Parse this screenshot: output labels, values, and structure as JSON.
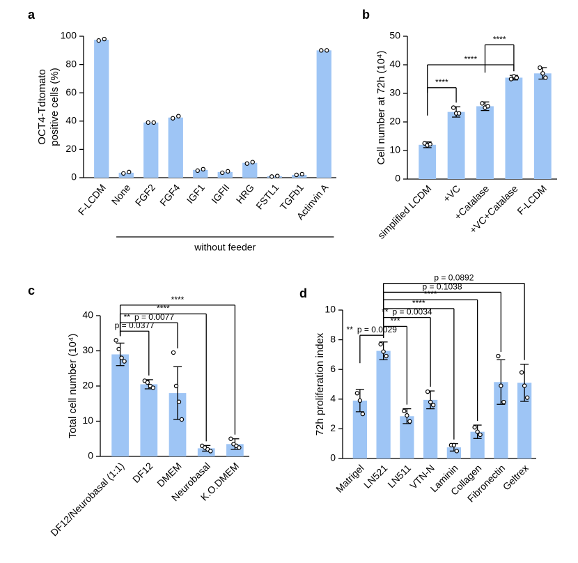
{
  "chart_data": [
    {
      "type": "bar",
      "panel": "a",
      "ylabel": [
        "OCT4-Tdtomato",
        "positive cells (%)"
      ],
      "categories": [
        "F-LCDM",
        "None",
        "FGF2",
        "FGF4",
        "IGF1",
        "IGFII",
        "HRG",
        "FSTL1",
        "TGFb1",
        "Actinvin A"
      ],
      "values": [
        97.5,
        3.5,
        39,
        42.5,
        5.5,
        4,
        10.5,
        1,
        2,
        90
      ],
      "points": [
        [
          97,
          98
        ],
        [
          3,
          4
        ],
        [
          39,
          39
        ],
        [
          42,
          43.5
        ],
        [
          5,
          6
        ],
        [
          3.5,
          4.5
        ],
        [
          10,
          11
        ],
        [
          0.8,
          1.2
        ],
        [
          2,
          2.5
        ],
        [
          90,
          90
        ]
      ],
      "color": "#9ec5f5",
      "ylim": [
        0,
        100
      ],
      "yticks": [
        0,
        20,
        40,
        60,
        80,
        100
      ],
      "group": {
        "label": "without feeder",
        "from": 1,
        "to": 9
      }
    },
    {
      "type": "bar",
      "panel": "b",
      "ylabel": [
        "Cell number at 72h (10⁴)"
      ],
      "categories": [
        "simplified LCDM",
        "+VC",
        "+Catalase",
        "+VC+Catalase",
        "F-LCDM"
      ],
      "values": [
        12,
        23.5,
        25.5,
        35.5,
        37
      ],
      "errors": [
        1,
        1.8,
        1.5,
        0.8,
        2
      ],
      "points": [
        [
          12.5,
          11.8,
          12.2
        ],
        [
          25,
          23,
          23
        ],
        [
          26.5,
          25,
          25.5
        ],
        [
          35,
          36,
          35.5
        ],
        [
          39,
          37,
          35.5
        ]
      ],
      "color": "#9ec5f5",
      "ylim": [
        0,
        50
      ],
      "yticks": [
        0,
        10,
        20,
        30,
        40,
        50
      ],
      "brackets": [
        {
          "from": 0,
          "to": 1,
          "y": 32,
          "labels": [
            "****"
          ]
        },
        {
          "from": 0,
          "to": 3,
          "y": 40,
          "labels": [
            "****"
          ]
        },
        {
          "from": 2,
          "to": 3,
          "y": 47,
          "labels": [
            "****"
          ]
        }
      ]
    },
    {
      "type": "bar",
      "panel": "c",
      "ylabel": [
        "Total cell number (10⁴)"
      ],
      "categories": [
        "DF12/Neurobasal (1:1)",
        "DF12",
        "DMEM",
        "Neurobasal",
        "K.O.DMEM"
      ],
      "values": [
        29,
        20.5,
        18,
        2.3,
        3.5
      ],
      "errors": [
        3.2,
        1.3,
        7.5,
        0.8,
        1.5
      ],
      "points": [
        [
          33,
          30.5,
          28,
          27
        ],
        [
          21.5,
          21,
          20,
          19.5
        ],
        [
          29.5,
          20,
          15.5,
          10.5
        ],
        [
          3,
          2.5,
          2,
          1.5
        ],
        [
          5,
          3.5,
          3,
          2.5
        ]
      ],
      "color": "#9ec5f5",
      "ylim": [
        0,
        40
      ],
      "yticks": [
        0,
        10,
        20,
        30,
        40
      ],
      "brackets": [
        {
          "from": 0,
          "to": 1,
          "y": 35.6,
          "labels": [
            "p = 0.0377"
          ]
        },
        {
          "from": 0,
          "to": 2,
          "y": 38,
          "labels": [
            "**",
            "p = 0.0077"
          ]
        },
        {
          "from": 0,
          "to": 3,
          "y": 40.5,
          "labels": [
            "****"
          ]
        },
        {
          "from": 0,
          "to": 4,
          "y": 43,
          "labels": [
            "****"
          ]
        }
      ]
    },
    {
      "type": "bar",
      "panel": "d",
      "ylabel": [
        "72h proliferation index"
      ],
      "categories": [
        "Matrigel",
        "LN521",
        "LN511",
        "VTN-N",
        "Laminin",
        "Collagen",
        "Fibronectin",
        "Geltrex"
      ],
      "values": [
        3.9,
        7.25,
        2.85,
        3.95,
        0.75,
        1.8,
        5.15,
        5.1
      ],
      "errors": [
        0.75,
        0.6,
        0.5,
        0.6,
        0.25,
        0.45,
        1.5,
        1.25
      ],
      "points": [
        [
          4.4,
          3.9,
          3.0
        ],
        [
          7.7,
          7.2,
          6.9
        ],
        [
          3.2,
          2.9,
          2.5
        ],
        [
          4.5,
          3.8,
          3.6
        ],
        [
          0.9,
          0.9,
          0.5
        ],
        [
          2.1,
          1.8,
          1.6
        ],
        [
          6.9,
          4.9,
          3.8
        ],
        [
          5.8,
          4.9,
          4.1
        ]
      ],
      "color": "#9ec5f5",
      "ylim": [
        0,
        10
      ],
      "yticks": [
        0,
        2,
        4,
        6,
        8,
        10
      ],
      "brackets": [
        {
          "from": 0,
          "to": 1,
          "y": 8.3,
          "labels": [
            "**",
            "p = 0.0029"
          ]
        },
        {
          "from": 1,
          "to": 2,
          "y": 8.9,
          "labels": [
            "***"
          ]
        },
        {
          "from": 1,
          "to": 3,
          "y": 9.5,
          "labels": [
            "**",
            "p = 0.0034"
          ]
        },
        {
          "from": 1,
          "to": 4,
          "y": 10.1,
          "labels": [
            "****"
          ]
        },
        {
          "from": 1,
          "to": 5,
          "y": 10.7,
          "labels": [
            "****"
          ]
        },
        {
          "from": 1,
          "to": 6,
          "y": 11.2,
          "labels": [
            "p = 0.1038"
          ]
        },
        {
          "from": 1,
          "to": 7,
          "y": 11.8,
          "labels": [
            "p = 0.0892"
          ]
        }
      ]
    }
  ]
}
